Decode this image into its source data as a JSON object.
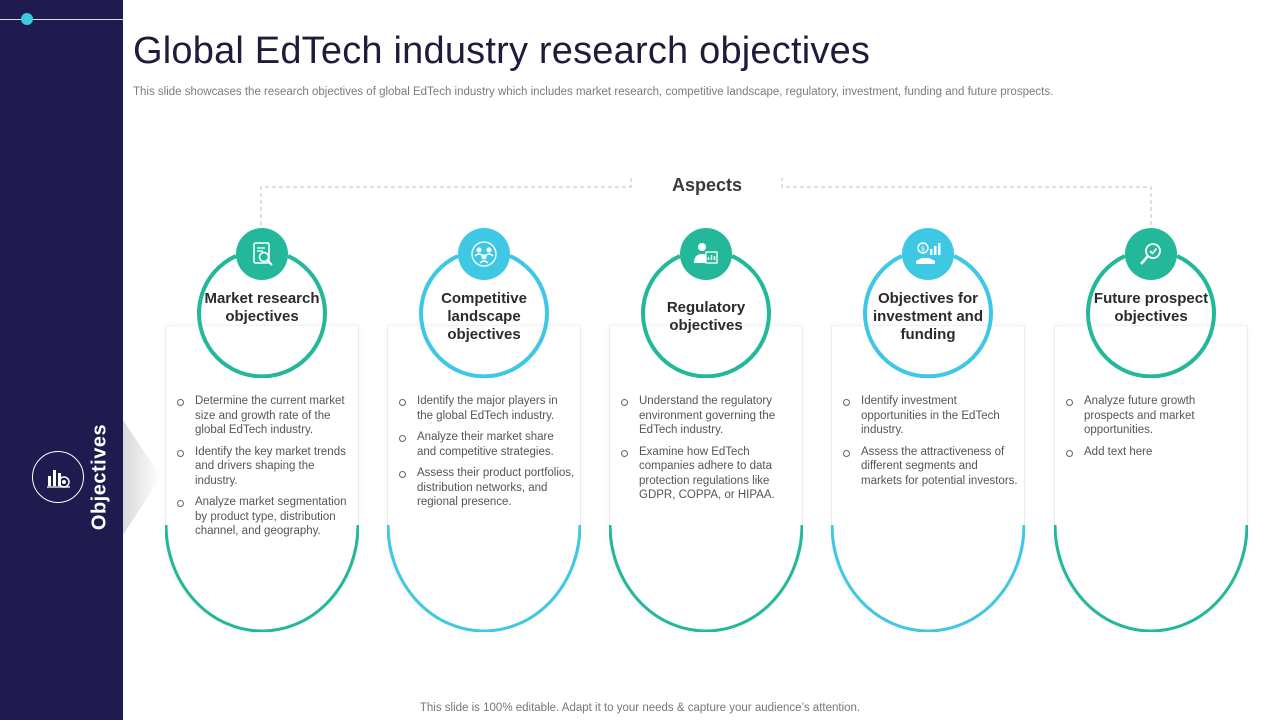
{
  "header": {
    "title": "Global EdTech industry research objectives",
    "subtitle": "This slide showcases the research objectives of global EdTech industry which includes market research, competitive landscape, regulatory, investment, funding and future prospects."
  },
  "sidebar": {
    "label": "Objectives",
    "icon": "chart-target-icon"
  },
  "aspects_label": "Aspects",
  "colors": {
    "sidebar": "#1f1b4f",
    "teal": "#23b89a",
    "cyan": "#3fc8e4"
  },
  "columns": [
    {
      "title": "Market research objectives",
      "icon": "market-research-icon",
      "bullets": [
        "Determine the current market size and growth rate of the global EdTech industry.",
        "Identify the key market trends and drivers shaping the industry.",
        "Analyze market segmentation by product type, distribution channel, and geography."
      ]
    },
    {
      "title": "Competitive landscape objectives",
      "icon": "competitors-group-icon",
      "bullets": [
        "Identify the major players in the global EdTech industry.",
        "Analyze their market share and competitive strategies.",
        "Assess their product portfolios, distribution networks, and regional presence."
      ]
    },
    {
      "title": "Regulatory objectives",
      "icon": "regulatory-person-icon",
      "bullets": [
        "Understand the regulatory environment governing the EdTech industry.",
        "Examine how EdTech companies adhere to data protection regulations like GDPR, COPPA, or HIPAA."
      ]
    },
    {
      "title": "Objectives for investment and funding",
      "icon": "investment-hand-icon",
      "bullets": [
        "Identify investment opportunities in the EdTech industry.",
        "Assess the attractiveness of different segments and markets for potential investors."
      ]
    },
    {
      "title": "Future prospect objectives",
      "icon": "future-prospect-icon",
      "bullets": [
        "Analyze future growth prospects and market opportunities.",
        "Add text here"
      ]
    }
  ],
  "footer": "This slide is 100% editable. Adapt it to your needs & capture your audience’s attention."
}
